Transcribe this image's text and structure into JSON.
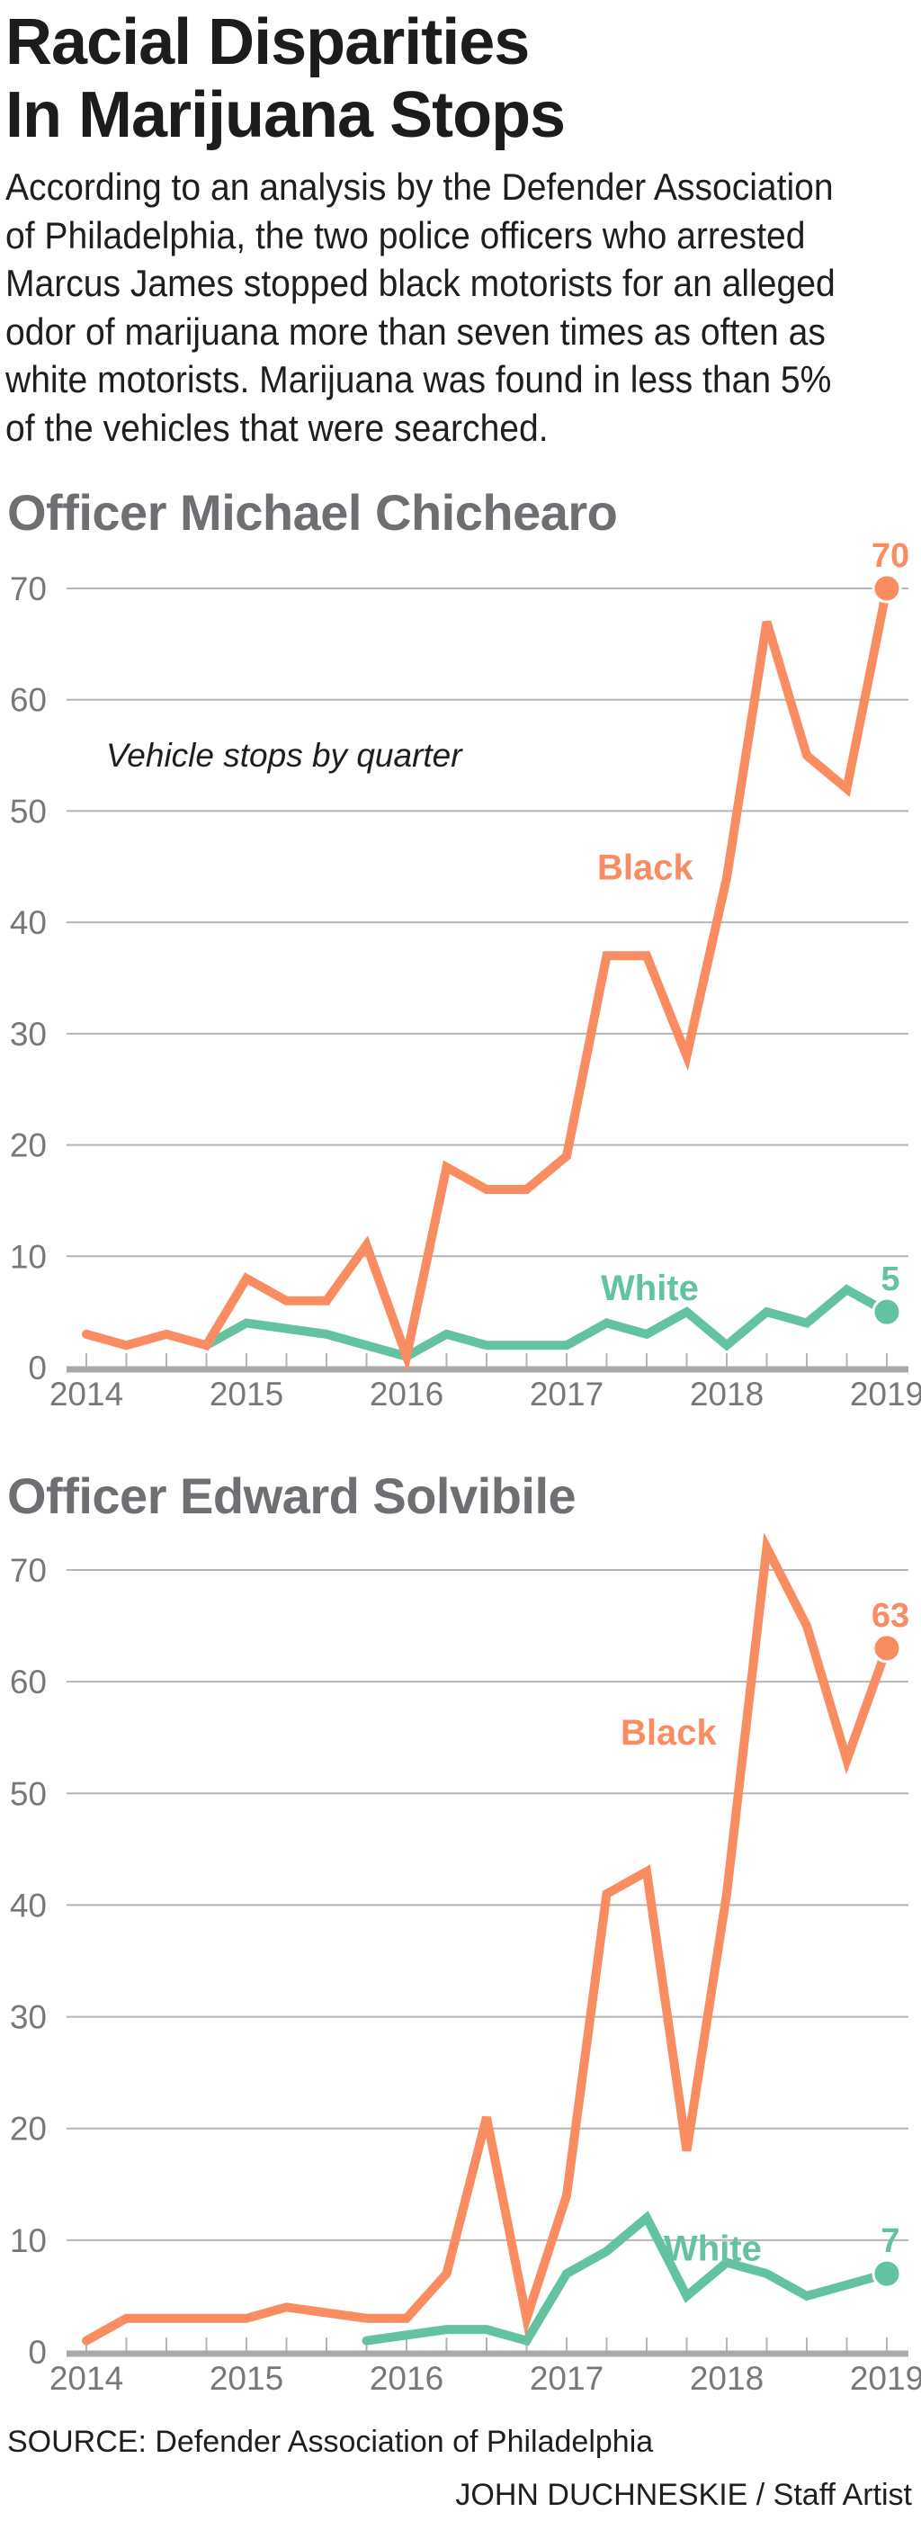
{
  "title_lines": [
    "Racial Disparities",
    "In Marijuana Stops"
  ],
  "intro_lines": [
    "According to an analysis by the Defender Association",
    "of Philadelphia, the two police officers who arrested",
    "Marcus James stopped black motorists for an alleged",
    "odor of marijuana more than seven times as often as",
    "white motorists. Marijuana was found in less than 5%",
    "of the vehicles that were searched."
  ],
  "colors": {
    "black": "#fa8c62",
    "white": "#63c3a1",
    "grid": "#b5b5b5",
    "axis": "#a8a8a8",
    "tick_text": "#77787b"
  },
  "chart_data": [
    {
      "type": "line",
      "title": "Officer Michael Chichearo",
      "annotation": "Vehicle stops by quarter",
      "xlabel": "",
      "ylabel": "",
      "x_unit": "quarter",
      "x_tick_labels": [
        "2014",
        "2015",
        "2016",
        "2017",
        "2018",
        "2019"
      ],
      "y_ticks": [
        0,
        10,
        20,
        30,
        40,
        50,
        60,
        70
      ],
      "ylim": [
        0,
        70
      ],
      "grid": true,
      "series": [
        {
          "name": "Black",
          "color_key": "black",
          "start_quarter": 0,
          "values": [
            3,
            2,
            3,
            2,
            8,
            6,
            6,
            11,
            1,
            18,
            16,
            16,
            19,
            37,
            37,
            28,
            44,
            67,
            55,
            52,
            70
          ],
          "end_label": "70"
        },
        {
          "name": "White",
          "color_key": "white",
          "start_quarter": 3,
          "values": [
            2,
            4,
            3.5,
            3,
            2,
            1,
            3,
            2,
            2,
            2,
            4,
            3,
            5,
            2,
            5,
            4,
            7,
            5
          ],
          "end_label": "5"
        }
      ]
    },
    {
      "type": "line",
      "title": "Officer Edward Solvibile",
      "xlabel": "",
      "ylabel": "",
      "x_unit": "quarter",
      "x_tick_labels": [
        "2014",
        "2015",
        "2016",
        "2017",
        "2018",
        "2019"
      ],
      "y_ticks": [
        0,
        10,
        20,
        30,
        40,
        50,
        60,
        70
      ],
      "ylim": [
        0,
        70
      ],
      "grid": true,
      "series": [
        {
          "name": "Black",
          "color_key": "black",
          "start_quarter": 0,
          "values": [
            1,
            3,
            3,
            3,
            3,
            4,
            3.5,
            3,
            3,
            7,
            21,
            3,
            14,
            41,
            43,
            18,
            41,
            72,
            65,
            53,
            63
          ],
          "end_label": "63"
        },
        {
          "name": "White",
          "color_key": "white",
          "start_quarter": 7,
          "values": [
            1,
            1.5,
            2,
            2,
            1,
            7,
            9,
            12,
            5,
            8,
            7,
            5,
            6,
            7
          ],
          "end_label": "7"
        }
      ]
    }
  ],
  "source": "SOURCE: Defender Association of Philadelphia",
  "credit": "JOHN DUCHNESKIE / Staff Artist"
}
